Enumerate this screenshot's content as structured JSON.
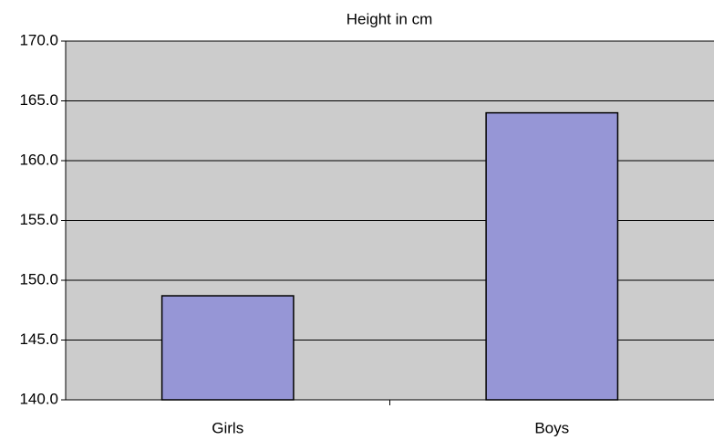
{
  "chart_data": {
    "type": "bar",
    "title": "Height in cm",
    "categories": [
      "Girls",
      "Boys"
    ],
    "values": [
      148.7,
      164.0
    ],
    "color": "#9696d6",
    "ylim": [
      140,
      170
    ],
    "yticks": [
      {
        "value": 140,
        "label": "140.0"
      },
      {
        "value": 145,
        "label": "145.0"
      },
      {
        "value": 150,
        "label": "150.0"
      },
      {
        "value": 155,
        "label": "155.0"
      },
      {
        "value": 160,
        "label": "160.0"
      },
      {
        "value": 165,
        "label": "165.0"
      },
      {
        "value": 170,
        "label": "170.0"
      }
    ],
    "grid": true
  }
}
